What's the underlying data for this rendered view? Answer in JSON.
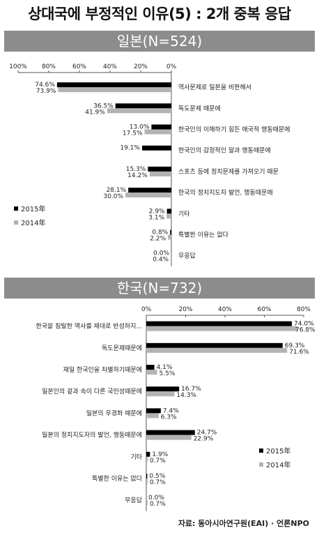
{
  "title": "상대국에 부정적인 이유(5) : 2개 중복 응답",
  "source": "자료: 동아시아연구원(EAI) · 언론NPO",
  "colors": {
    "series_2015": "#000000",
    "series_2014": "#b3b3b3",
    "band": "#8c8c8c"
  },
  "chart_data": [
    {
      "type": "bar",
      "orientation": "horizontal",
      "direction": "right-to-left",
      "title": "일본(N=524)",
      "xlim": [
        0,
        100
      ],
      "x_ticks": [
        "100%",
        "80%",
        "60%",
        "40%",
        "20%",
        "0%"
      ],
      "legend_position": "left",
      "categories": [
        "역사문제로 일본을 비판해서",
        "독도문제 때문에",
        "한국인의 이해하기 힘든 애국적 행동때문에",
        "한국인의 감정적인 말과 행동때문에",
        "스포츠 등에 정치문제를 가져오기 때문",
        "한국의 정치지도자 발언, 행동때문에",
        "기타",
        "특별한 이유는 없다",
        "무응답"
      ],
      "series": [
        {
          "name": "2015年",
          "values": [
            74.6,
            36.5,
            13.0,
            19.1,
            15.3,
            28.1,
            2.9,
            0.8,
            0.0
          ],
          "labels": [
            "74.6%",
            "36.5%",
            "13.0%",
            "19.1%",
            "15.3%",
            "28.1%",
            "2.9%",
            "0.8%",
            "0.0%"
          ]
        },
        {
          "name": "2014年",
          "values": [
            73.9,
            41.9,
            17.5,
            null,
            14.2,
            30.0,
            3.1,
            2.2,
            0.4
          ],
          "labels": [
            "73.9%",
            "41.9%",
            "17.5%",
            "",
            "14.2%",
            "30.0%",
            "3.1%",
            "2.2%",
            "0.4%"
          ]
        }
      ]
    },
    {
      "type": "bar",
      "orientation": "horizontal",
      "direction": "left-to-right",
      "title": "한국(N=732)",
      "xlim": [
        0,
        80
      ],
      "x_ticks": [
        "0%",
        "20%",
        "40%",
        "60%",
        "80%"
      ],
      "legend_position": "right",
      "categories": [
        "한국을 침탈한 역사를 제대로 반성하지...",
        "독도문제때문에",
        "재일 한국인을 차별하기때문에",
        "일본인의 겉과 속이 다른 국민성때문에",
        "일본의 우경화 때문에",
        "일본의 정치지도자의 발언, 행동때문에",
        "기타",
        "특별한 이유는 없다",
        "무응답"
      ],
      "series": [
        {
          "name": "2015年",
          "values": [
            74.0,
            69.3,
            4.1,
            16.7,
            7.4,
            24.7,
            1.9,
            0.5,
            0.0
          ],
          "labels": [
            "74.0%",
            "69.3%",
            "4.1%",
            "16.7%",
            "7.4%",
            "24.7%",
            "1.9%",
            "0.5%",
            "0.0%"
          ]
        },
        {
          "name": "2014年",
          "values": [
            76.8,
            71.6,
            5.5,
            14.3,
            6.3,
            22.9,
            0.7,
            0.7,
            0.7
          ],
          "labels": [
            "76.8%",
            "71.6%",
            "5.5%",
            "14.3%",
            "6.3%",
            "22.9%",
            "0.7%",
            "0.7%",
            "0.7%"
          ]
        }
      ]
    }
  ]
}
